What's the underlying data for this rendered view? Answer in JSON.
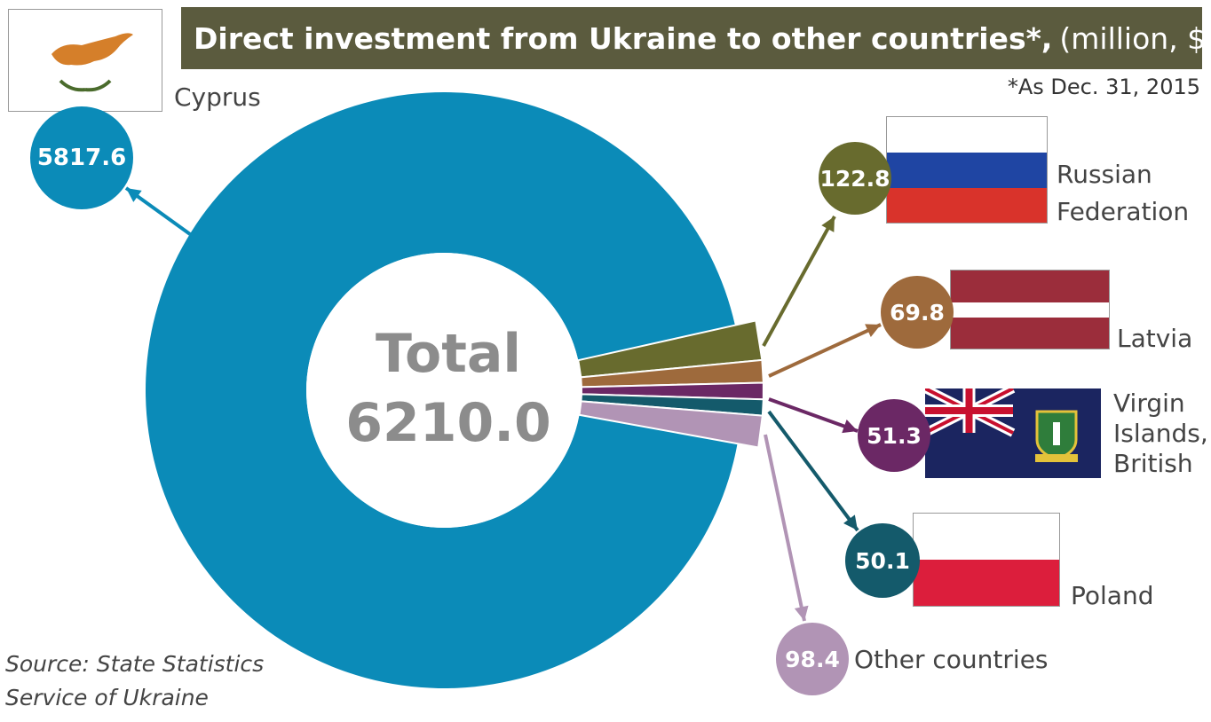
{
  "title": {
    "main": "Direct investment from Ukraine to other countries*,",
    "unit": "(million, $)"
  },
  "note": "*As Dec. 31, 2015",
  "source": [
    "Source: State Statistics",
    "Service of Ukraine"
  ],
  "center": {
    "line1": "Total",
    "line2": "6210.0"
  },
  "chart_data": {
    "type": "pie",
    "total": 6210.0,
    "unit": "million, $",
    "slices": [
      {
        "label": "Cyprus",
        "value": 5817.6,
        "color": "#0b8bb8",
        "display": "5817.6"
      },
      {
        "label": "Russian Federation",
        "value": 122.8,
        "color": "#686b2e",
        "display": "122.8"
      },
      {
        "label": "Latvia",
        "value": 69.8,
        "color": "#9e6a3c",
        "display": "69.8"
      },
      {
        "label": "Virgin Islands, British",
        "value": 51.3,
        "color": "#6b2865",
        "display": "51.3"
      },
      {
        "label": "Poland",
        "value": 50.1,
        "color": "#145a6b",
        "display": "50.1"
      },
      {
        "label": "Other countries",
        "value": 98.4,
        "color": "#b194b5",
        "display": "98.4"
      }
    ]
  },
  "labels": {
    "cyprus": "Cyprus",
    "russia": [
      "Russian",
      "Federation"
    ],
    "latvia": "Latvia",
    "bvi": [
      "Virgin",
      "Islands,",
      "British"
    ],
    "poland": "Poland",
    "other": "Other countries"
  },
  "icons": {
    "cyprus": "cyprus-flag-icon",
    "russia": "russia-flag-icon",
    "latvia": "latvia-flag-icon",
    "bvi": "bvi-flag-icon",
    "poland": "poland-flag-icon"
  }
}
